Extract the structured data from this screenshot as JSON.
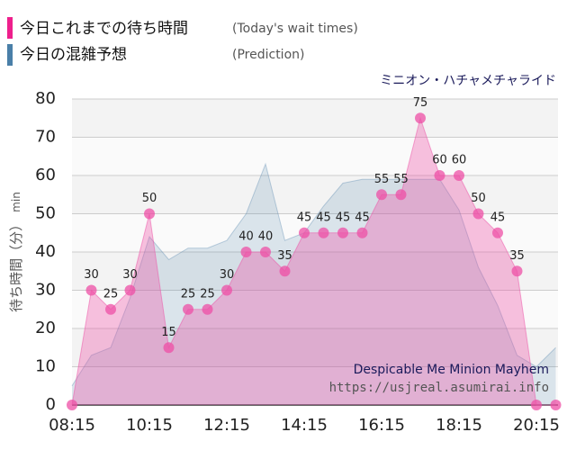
{
  "chart_data": {
    "type": "area",
    "subtitle": "ミニオン・ハチャメチャライド",
    "y_label": "待ち時間（分）",
    "y_unit": "min",
    "annotations": [
      "Despicable Me Minion Mayhem",
      "https://usjreal.asumirai.info"
    ],
    "categories": [
      "08:15",
      null,
      null,
      null,
      "10:15",
      null,
      null,
      null,
      "12:15",
      null,
      null,
      null,
      "14:15",
      null,
      null,
      null,
      "16:15",
      null,
      null,
      null,
      "18:15",
      null,
      null,
      null,
      "20:15",
      null
    ],
    "series": [
      {
        "name": "今日これまでの待ち時間",
        "note": "(Today's wait times)",
        "color": "#ee4fa5",
        "values": [
          0,
          30,
          25,
          30,
          50,
          15,
          25,
          25,
          30,
          40,
          40,
          35,
          45,
          45,
          45,
          45,
          55,
          55,
          75,
          60,
          60,
          50,
          45,
          35,
          0,
          0
        ]
      },
      {
        "name": "今日の混雑予想",
        "note": "(Prediction)",
        "color": "#4a7fa8",
        "values": [
          5,
          13,
          15,
          28,
          44,
          38,
          41,
          41,
          43,
          50,
          63,
          43,
          45,
          52,
          58,
          59,
          59,
          59,
          59,
          59,
          51,
          36,
          26,
          13,
          10,
          15
        ]
      }
    ],
    "ylim": [
      0,
      80
    ],
    "yticks": [
      0,
      10,
      20,
      30,
      40,
      50,
      60,
      70,
      80
    ],
    "grid": true
  }
}
